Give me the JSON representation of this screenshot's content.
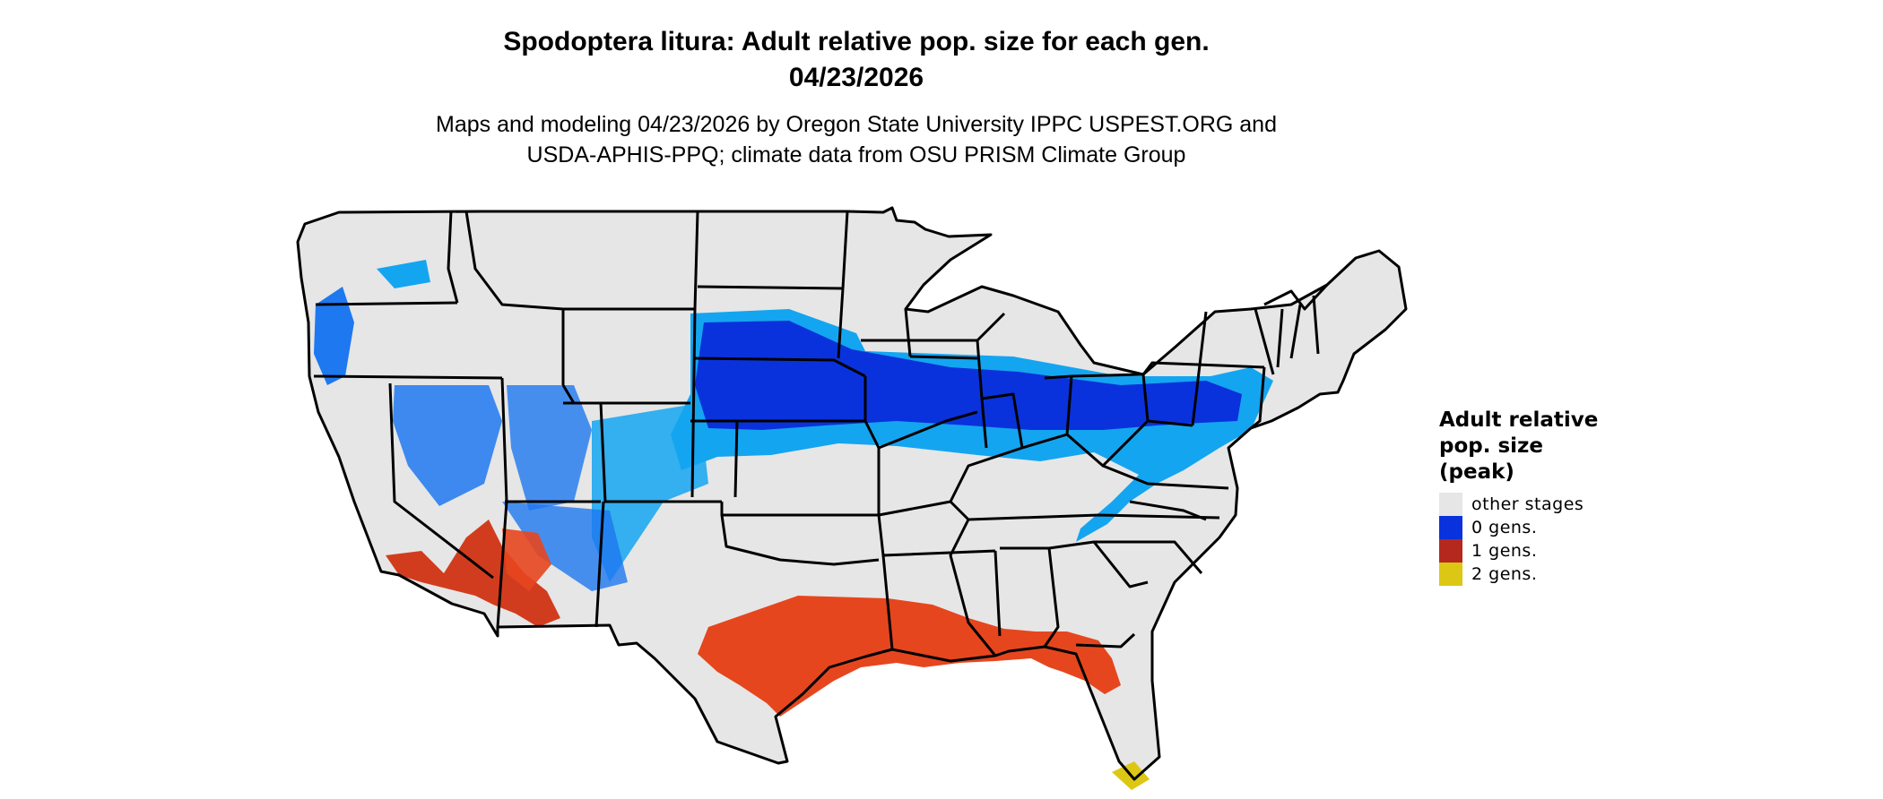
{
  "title": {
    "line1": "Spodoptera litura: Adult relative pop. size for each gen.",
    "line2": "04/23/2026"
  },
  "subtitle": {
    "line1": "Maps and modeling 04/23/2026 by Oregon State University IPPC USPEST.ORG and",
    "line2": "USDA-APHIS-PPQ; climate data from OSU PRISM Climate Group"
  },
  "legend": {
    "title_lines": [
      "Adult relative",
      "pop. size",
      "(peak)"
    ],
    "items": [
      {
        "label": "other stages",
        "color": "#e6e6e6"
      },
      {
        "label": "0 gens.",
        "color": "#0a32dc"
      },
      {
        "label": "1 gens.",
        "color": "#b4281e"
      },
      {
        "label": "2 gens.",
        "color": "#dcc814"
      }
    ]
  },
  "colors": {
    "background": "#ffffff",
    "land": "#e6e6e6",
    "border": "#000000",
    "blue_dark": "#0a32dc",
    "blue_mid": "#1e78f0",
    "blue_light": "#14a5f0",
    "orange": "#e6461e",
    "red": "#b4281e",
    "yellow": "#dcc814"
  }
}
